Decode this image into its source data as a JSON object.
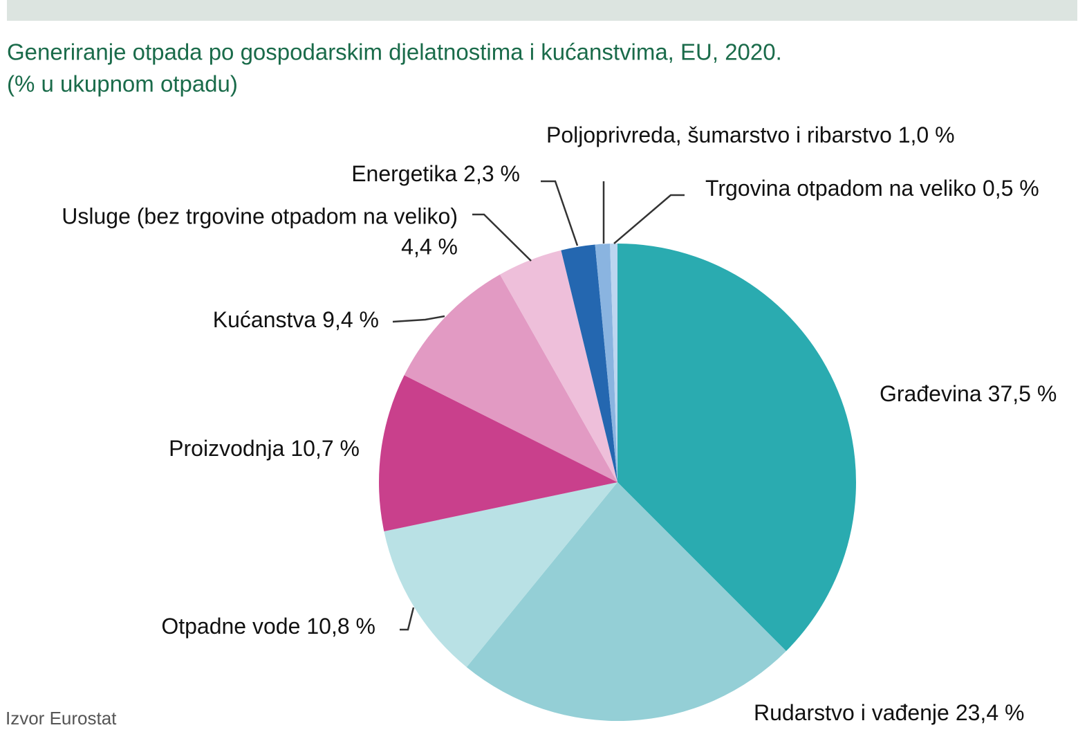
{
  "chart_data": {
    "type": "pie",
    "title": "Generiranje otpada po gospodarskim djelatnostima i kućanstvima, EU, 2020.",
    "subtitle": "(% u ukupnom otpadu)",
    "source": "Izvor Eurostat",
    "categories": [
      "Građevina",
      "Rudarstvo i vađenje",
      "Otpadne vode",
      "Proizvodnja",
      "Kućanstva",
      "Usluge (bez trgovine otpadom na veliko)",
      "Energetika",
      "Poljoprivreda, šumarstvo i ribarstvo",
      "Trgovina otpadom na veliko"
    ],
    "values": [
      37.5,
      23.4,
      10.8,
      10.7,
      9.4,
      4.4,
      2.3,
      1.0,
      0.5
    ],
    "value_labels": [
      "37,5 %",
      "23,4 %",
      "10,8 %",
      "10,7 %",
      "9,4 %",
      "4,4 %",
      "2,3 %",
      "1,0 %",
      "0,5 %"
    ],
    "colors": [
      "#2aabb0",
      "#94cfd6",
      "#b9e1e5",
      "#c9408c",
      "#e29ac3",
      "#eebfda",
      "#2467b0",
      "#8ab4e0",
      "#bcd6f0"
    ]
  }
}
